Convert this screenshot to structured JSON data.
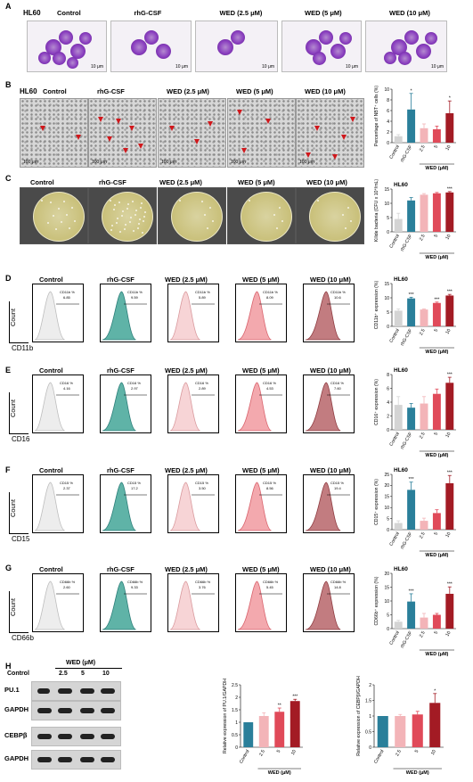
{
  "panels": {
    "A": "A",
    "B": "B",
    "C": "C",
    "D": "D",
    "E": "E",
    "F": "F",
    "G": "G",
    "H": "H"
  },
  "row_label": "HL60",
  "groups": [
    "Control",
    "rhG-CSF",
    "WED (2.5 μM)",
    "WED (5 μM)",
    "WED (10 μM)"
  ],
  "scale_A": "10 μm",
  "scale_B": "100 μm",
  "markers": {
    "D": "CD11b",
    "E": "CD16",
    "F": "CD15",
    "G": "CD66b"
  },
  "axis_count": "Count",
  "flow_values": {
    "D": {
      "name": "CD11b %",
      "vals": [
        "6.85",
        "9.59",
        "5.89",
        "8.09",
        "10.6"
      ]
    },
    "E": {
      "name": "CD16 %",
      "vals": [
        "4.16",
        "2.97",
        "2.89",
        "4.53",
        "7.60"
      ]
    },
    "F": {
      "name": "CD15 %",
      "vals": [
        "2.37",
        "17.2",
        "3.50",
        "8.56",
        "19.4"
      ]
    },
    "G": {
      "name": "CD66b %",
      "vals": [
        "2.60",
        "9.33",
        "3.76",
        "5.45",
        "14.8"
      ]
    }
  },
  "bar_xcats": [
    "Control",
    "rhG-CSF",
    "2.5",
    "5",
    "10"
  ],
  "wed_um": "WED (μM)",
  "chart_data": [
    {
      "type": "bar",
      "panel": "B",
      "ylabel": "Percentage of NBT⁺ cells (%)",
      "ylim": [
        0,
        10
      ],
      "categories": [
        "Control",
        "rhG-CSF",
        "2.5",
        "5",
        "10"
      ],
      "values": [
        1.2,
        6.2,
        2.7,
        2.5,
        5.5
      ],
      "errors": [
        0.3,
        3.0,
        0.8,
        0.6,
        2.3
      ],
      "colors": [
        "#d4d4d4",
        "#2a7f9a",
        "#f3b4b8",
        "#e04a59",
        "#a31b24"
      ],
      "sig": [
        "",
        "*",
        "",
        "",
        "*"
      ],
      "yticks": [
        0,
        2,
        4,
        6,
        8,
        10
      ]
    },
    {
      "type": "bar",
      "panel": "C",
      "title": "HL60",
      "ylabel": "Kilide bacteria (CFU x 10⁴/mL)",
      "ylim": [
        0,
        15
      ],
      "categories": [
        "Control",
        "rhG-CSF",
        "2.5",
        "5",
        "10"
      ],
      "values": [
        4.5,
        11.0,
        13.0,
        13.5,
        13.8
      ],
      "errors": [
        2.0,
        1.0,
        0.4,
        0.3,
        0.3
      ],
      "colors": [
        "#d4d4d4",
        "#2a7f9a",
        "#f3b4b8",
        "#e04a59",
        "#a31b24"
      ],
      "sig": [
        "",
        "",
        "",
        "",
        "***"
      ],
      "yticks": [
        0,
        5,
        10,
        15
      ]
    },
    {
      "type": "bar",
      "panel": "D",
      "title": "HL60",
      "ylabel": "CD11b⁺ expression (%)",
      "ylim": [
        0,
        15
      ],
      "categories": [
        "Control",
        "rhG-CSF",
        "2.5",
        "5",
        "10"
      ],
      "values": [
        5.5,
        9.8,
        5.9,
        8.2,
        10.8
      ],
      "errors": [
        0.6,
        0.4,
        0.2,
        0.3,
        0.4
      ],
      "colors": [
        "#d4d4d4",
        "#2a7f9a",
        "#f3b4b8",
        "#e04a59",
        "#a31b24"
      ],
      "sig": [
        "",
        "***",
        "",
        "***",
        "***"
      ],
      "yticks": [
        0,
        5,
        10,
        15
      ]
    },
    {
      "type": "bar",
      "panel": "E",
      "title": "HL60",
      "ylabel": "CD16⁺ expression (%)",
      "ylim": [
        0,
        8
      ],
      "categories": [
        "Control",
        "rhG-CSF",
        "2.5",
        "5",
        "10"
      ],
      "values": [
        3.6,
        3.2,
        3.8,
        5.2,
        6.8
      ],
      "errors": [
        1.2,
        0.6,
        1.0,
        0.7,
        0.8
      ],
      "colors": [
        "#d4d4d4",
        "#2a7f9a",
        "#f3b4b8",
        "#e04a59",
        "#a31b24"
      ],
      "sig": [
        "",
        "",
        "",
        "",
        "***"
      ],
      "yticks": [
        0,
        2,
        4,
        6,
        8
      ]
    },
    {
      "type": "bar",
      "panel": "F",
      "title": "HL60",
      "ylabel": "CD15⁺ expression (%)",
      "ylim": [
        0,
        25
      ],
      "categories": [
        "Control",
        "rhG-CSF",
        "2.5",
        "5",
        "10"
      ],
      "values": [
        3.0,
        18.0,
        4.0,
        7.5,
        21.0
      ],
      "errors": [
        1.0,
        3.5,
        1.2,
        1.5,
        3.5
      ],
      "colors": [
        "#d4d4d4",
        "#2a7f9a",
        "#f3b4b8",
        "#e04a59",
        "#a31b24"
      ],
      "sig": [
        "",
        "***",
        "",
        "",
        "***"
      ],
      "yticks": [
        0,
        5,
        10,
        15,
        20,
        25
      ]
    },
    {
      "type": "bar",
      "panel": "G",
      "title": "HL60",
      "ylabel": "CD66b⁺ expression (%)",
      "ylim": [
        0,
        20
      ],
      "categories": [
        "Control",
        "rhG-CSF",
        "2.5",
        "5",
        "10"
      ],
      "values": [
        2.5,
        9.8,
        4.0,
        5.0,
        12.6
      ],
      "errors": [
        0.5,
        2.8,
        1.5,
        0.5,
        2.5
      ],
      "colors": [
        "#d4d4d4",
        "#2a7f9a",
        "#f3b4b8",
        "#e04a59",
        "#a31b24"
      ],
      "sig": [
        "",
        "***",
        "",
        "",
        "***"
      ],
      "yticks": [
        0,
        5,
        10,
        15,
        20
      ]
    },
    {
      "type": "bar",
      "panel": "H1",
      "ylabel": "Relative expression of PU.1/GAPDH",
      "ylim": [
        0,
        2.5
      ],
      "categories": [
        "Control",
        "2.5",
        "5",
        "10"
      ],
      "values": [
        1.0,
        1.25,
        1.42,
        1.85
      ],
      "errors": [
        0,
        0.13,
        0.15,
        0.07
      ],
      "colors": [
        "#2a7f9a",
        "#f3b4b8",
        "#e04a59",
        "#a31b24"
      ],
      "sig": [
        "",
        "",
        "**",
        "***"
      ],
      "yticks": [
        0,
        0.5,
        1.0,
        1.5,
        2.0,
        2.5
      ]
    },
    {
      "type": "bar",
      "panel": "H2",
      "ylabel": "Relative expression of CEBPβ/GAPDH",
      "ylim": [
        0,
        2.0
      ],
      "categories": [
        "Control",
        "2.5",
        "5",
        "10"
      ],
      "values": [
        1.0,
        1.0,
        1.05,
        1.42
      ],
      "errors": [
        0,
        0.05,
        0.1,
        0.3
      ],
      "colors": [
        "#2a7f9a",
        "#f3b4b8",
        "#e04a59",
        "#a31b24"
      ],
      "sig": [
        "",
        "",
        "",
        "*"
      ],
      "yticks": [
        0,
        0.5,
        1.0,
        1.5,
        2.0
      ]
    }
  ],
  "western": {
    "header": "WED (μM)",
    "lanes": [
      "Control",
      "2.5",
      "5",
      "10"
    ],
    "rows": [
      "PU.1",
      "GAPDH",
      "CEBPβ",
      "GAPDH"
    ]
  },
  "colors": {
    "control": "#d4d4d4",
    "rhgcsf": "#2a7f9a",
    "wed25": "#f3b4b8",
    "wed5": "#e04a59",
    "wed10": "#a31b24"
  }
}
